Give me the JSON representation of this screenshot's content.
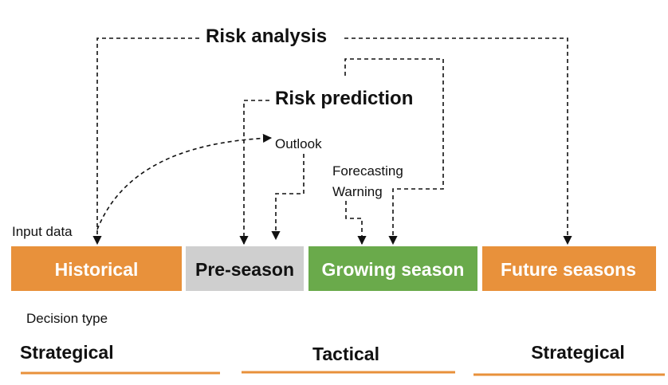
{
  "labels": {
    "risk_analysis": "Risk analysis",
    "risk_prediction": "Risk prediction",
    "outlook": "Outlook",
    "forecasting": "Forecasting",
    "warning": "Warning",
    "input_data": "Input data",
    "decision_type": "Decision type"
  },
  "periods": [
    {
      "label": "Historical",
      "fill": "#e8913b",
      "text_color": "#ffffff"
    },
    {
      "label": "Pre-season",
      "fill": "#cfcfcf",
      "text_color": "#111111"
    },
    {
      "label": "Growing season",
      "fill": "#6aaa4b",
      "text_color": "#ffffff"
    },
    {
      "label": "Future seasons",
      "fill": "#e8913b",
      "text_color": "#ffffff"
    }
  ],
  "decisions": [
    {
      "label": "Strategical"
    },
    {
      "label": "Tactical"
    },
    {
      "label": "Strategical"
    }
  ],
  "colors": {
    "underline": "#e8913b",
    "connector": "#111111"
  }
}
